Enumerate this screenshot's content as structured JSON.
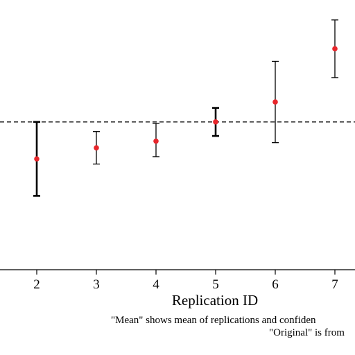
{
  "chart_data": {
    "type": "scatter",
    "xlabel": "Replication ID",
    "x_ticks": [
      "2",
      "3",
      "4",
      "5",
      "6",
      "7"
    ],
    "reference_line": {
      "style": "dashed",
      "value": 0
    },
    "points": [
      {
        "x": 2,
        "y": -0.5,
        "lo": -1.0,
        "hi": 0.0,
        "bold": true
      },
      {
        "x": 3,
        "y": -0.35,
        "lo": -0.57,
        "hi": -0.13,
        "bold": false
      },
      {
        "x": 4,
        "y": -0.26,
        "lo": -0.47,
        "hi": -0.02,
        "bold": false
      },
      {
        "x": 5,
        "y": 0.0,
        "lo": -0.19,
        "hi": 0.19,
        "bold": true
      },
      {
        "x": 6,
        "y": 0.27,
        "lo": -0.28,
        "hi": 0.82,
        "bold": false
      },
      {
        "x": 7,
        "y": 0.99,
        "lo": 0.6,
        "hi": 1.38,
        "bold": false
      }
    ],
    "ylim": [
      -2.0,
      1.65
    ],
    "grid": false,
    "colors": {
      "point": "#e8262b",
      "errorbar": "#000000",
      "reference": "#000000"
    }
  },
  "footnote": {
    "line1": "\"Mean\" shows mean of replications and confiden",
    "line2": "\"Original\" is from"
  }
}
